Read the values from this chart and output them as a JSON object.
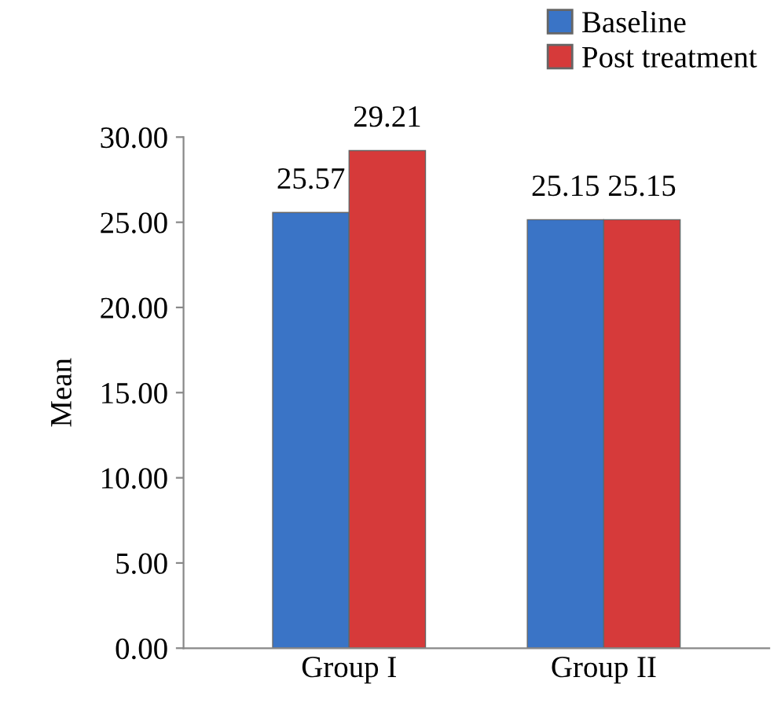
{
  "chart_data": {
    "type": "bar",
    "ylabel": "Mean",
    "categories": [
      "Group I",
      "Group II"
    ],
    "series": [
      {
        "name": "Baseline",
        "color": "#3a74c6",
        "values": [
          25.57,
          25.15
        ]
      },
      {
        "name": "Post treatment",
        "color": "#d63a3a",
        "values": [
          29.21,
          25.15
        ]
      }
    ],
    "ylim": [
      0,
      30
    ],
    "yticks": [
      {
        "value": 0,
        "label": "0.00"
      },
      {
        "value": 5,
        "label": "5.00"
      },
      {
        "value": 10,
        "label": "10.00"
      },
      {
        "value": 15,
        "label": "15.00"
      },
      {
        "value": 20,
        "label": "20.00"
      },
      {
        "value": 25,
        "label": "25.00"
      },
      {
        "value": 30,
        "label": "30.00"
      }
    ],
    "data_labels": true,
    "grid": false,
    "legend": "top right"
  }
}
